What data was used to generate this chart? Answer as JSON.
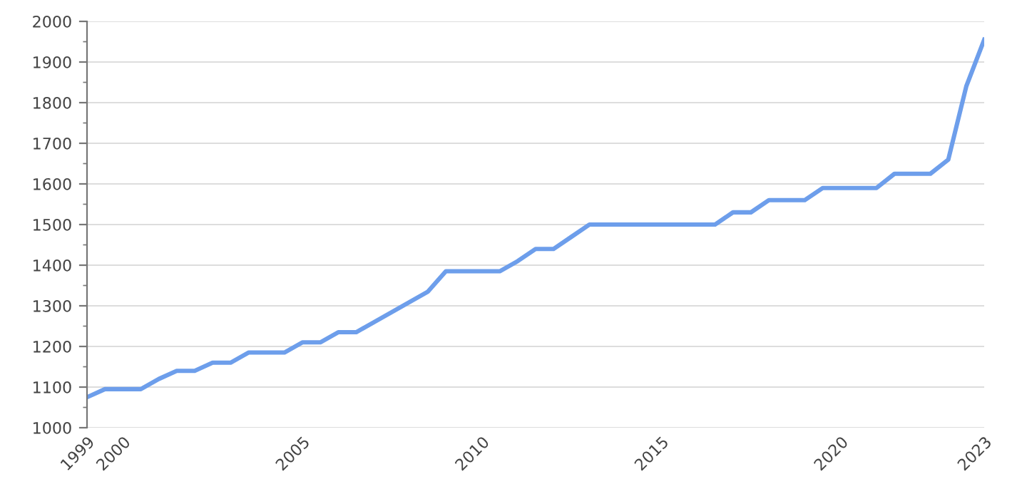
{
  "chart_data": {
    "type": "line",
    "categories": [
      "1999",
      null,
      "2000",
      null,
      null,
      null,
      null,
      null,
      null,
      null,
      null,
      null,
      "2005",
      null,
      null,
      null,
      null,
      null,
      null,
      null,
      null,
      null,
      "2010",
      null,
      null,
      null,
      null,
      null,
      null,
      null,
      null,
      null,
      "2015",
      null,
      null,
      null,
      null,
      null,
      null,
      null,
      null,
      null,
      "2020",
      null,
      null,
      null,
      null,
      null,
      null,
      null,
      "2023"
    ],
    "series": [
      {
        "color": "#6d9eeb",
        "values": [
          1075,
          1095,
          1095,
          1095,
          1120,
          1140,
          1140,
          1160,
          1160,
          1185,
          1185,
          1185,
          1210,
          1210,
          1235,
          1235,
          1260,
          1285,
          1310,
          1335,
          1385,
          1385,
          1385,
          1385,
          1410,
          1440,
          1440,
          1470,
          1500,
          1500,
          1500,
          1500,
          1500,
          1500,
          1500,
          1500,
          1530,
          1530,
          1560,
          1560,
          1560,
          1590,
          1590,
          1590,
          1590,
          1625,
          1625,
          1625,
          1660,
          1840,
          1955
        ]
      }
    ],
    "ylim": [
      1000,
      2000
    ],
    "yticks": [
      1000,
      {
        "value": 1050,
        "label": null
      },
      1100,
      {
        "value": 1150,
        "label": null
      },
      1200,
      {
        "value": 1250,
        "label": null
      },
      1300,
      {
        "value": 1350,
        "label": null
      },
      1400,
      {
        "value": 1450,
        "label": null
      },
      1500,
      {
        "value": 1550,
        "label": null
      },
      1600,
      {
        "value": 1650,
        "label": null
      },
      1700,
      {
        "value": 1750,
        "label": null
      },
      1800,
      {
        "value": 1850,
        "label": null
      },
      1900,
      {
        "value": 1950,
        "label": null
      },
      2000
    ],
    "grid": "y",
    "marker": "none",
    "line_style": "solid",
    "legend": false
  }
}
